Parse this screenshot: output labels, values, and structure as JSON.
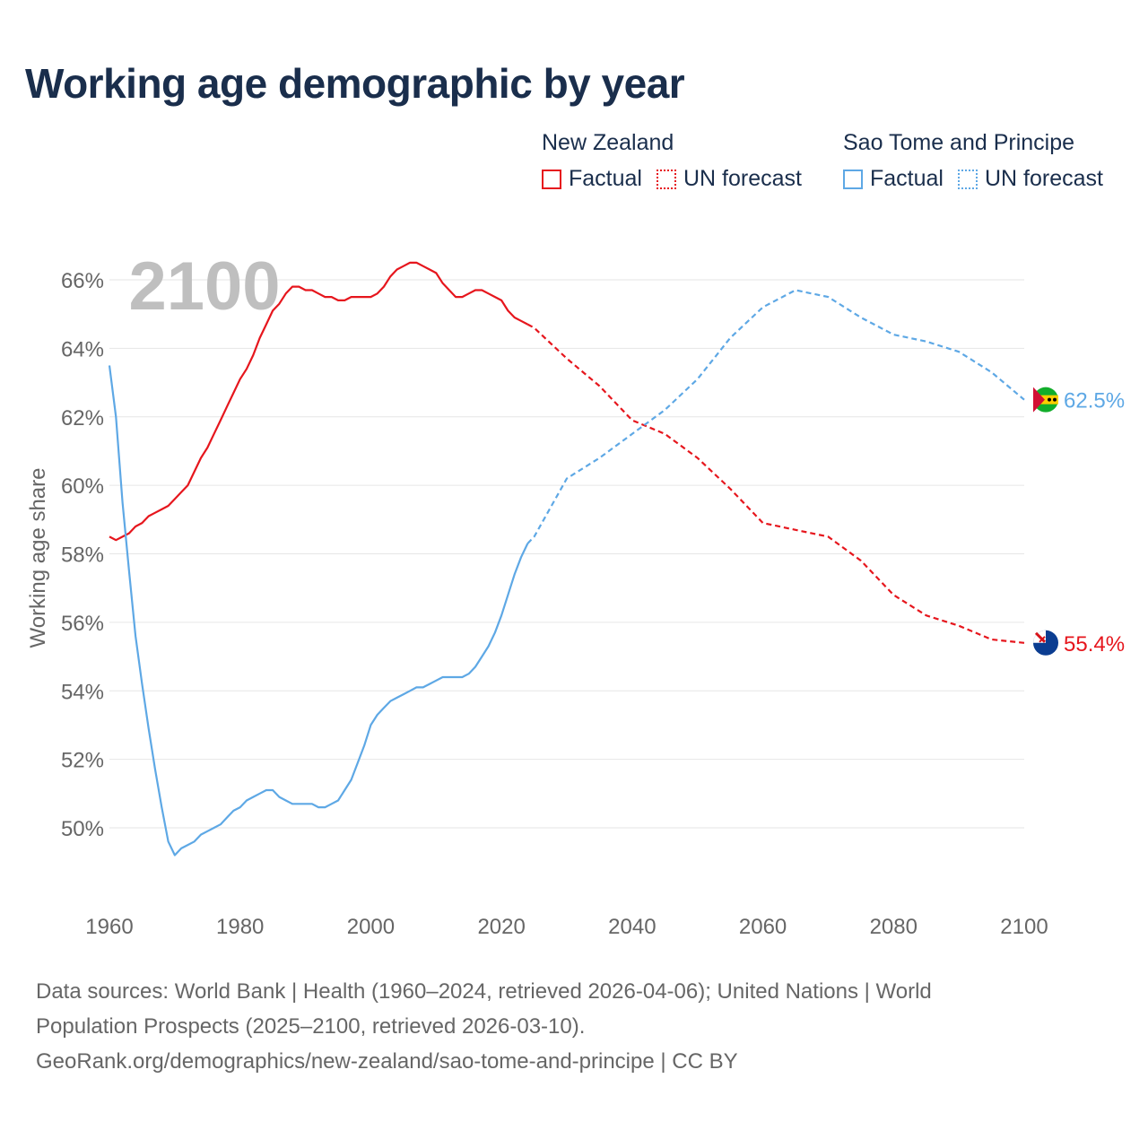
{
  "title": "Working age demographic by year",
  "legend": {
    "groups": [
      {
        "name": "New Zealand",
        "factual_label": "Factual",
        "forecast_label": "UN forecast",
        "color": "#e6161d"
      },
      {
        "name": "Sao Tome and Principe",
        "factual_label": "Factual",
        "forecast_label": "UN forecast",
        "color": "#5ea8e5"
      }
    ]
  },
  "chart_data": {
    "type": "line",
    "title": "Working age demographic by year",
    "xlabel": "",
    "ylabel": "Working age share",
    "xlim": [
      1960,
      2100
    ],
    "ylim": [
      48,
      67
    ],
    "x_ticks": [
      1960,
      1980,
      2000,
      2020,
      2040,
      2060,
      2080,
      2100
    ],
    "x_tick_labels": [
      "1960",
      "1980",
      "2000",
      "2020",
      "2040",
      "2060",
      "2080",
      "2100"
    ],
    "y_ticks": [
      50,
      52,
      54,
      56,
      58,
      60,
      62,
      64,
      66
    ],
    "y_tick_labels": [
      "50%",
      "52%",
      "54%",
      "56%",
      "58%",
      "60%",
      "62%",
      "64%",
      "66%"
    ],
    "year_watermark": "2100",
    "factual_end_year": 2024,
    "series": [
      {
        "name": "New Zealand",
        "color": "#e6161d",
        "end_label": "55.4%",
        "points": [
          [
            1960,
            58.5
          ],
          [
            1961,
            58.4
          ],
          [
            1962,
            58.5
          ],
          [
            1963,
            58.6
          ],
          [
            1964,
            58.8
          ],
          [
            1965,
            58.9
          ],
          [
            1966,
            59.1
          ],
          [
            1967,
            59.2
          ],
          [
            1968,
            59.3
          ],
          [
            1969,
            59.4
          ],
          [
            1970,
            59.6
          ],
          [
            1971,
            59.8
          ],
          [
            1972,
            60.0
          ],
          [
            1973,
            60.4
          ],
          [
            1974,
            60.8
          ],
          [
            1975,
            61.1
          ],
          [
            1976,
            61.5
          ],
          [
            1977,
            61.9
          ],
          [
            1978,
            62.3
          ],
          [
            1979,
            62.7
          ],
          [
            1980,
            63.1
          ],
          [
            1981,
            63.4
          ],
          [
            1982,
            63.8
          ],
          [
            1983,
            64.3
          ],
          [
            1984,
            64.7
          ],
          [
            1985,
            65.1
          ],
          [
            1986,
            65.3
          ],
          [
            1987,
            65.6
          ],
          [
            1988,
            65.8
          ],
          [
            1989,
            65.8
          ],
          [
            1990,
            65.7
          ],
          [
            1991,
            65.7
          ],
          [
            1992,
            65.6
          ],
          [
            1993,
            65.5
          ],
          [
            1994,
            65.5
          ],
          [
            1995,
            65.4
          ],
          [
            1996,
            65.4
          ],
          [
            1997,
            65.5
          ],
          [
            1998,
            65.5
          ],
          [
            1999,
            65.5
          ],
          [
            2000,
            65.5
          ],
          [
            2001,
            65.6
          ],
          [
            2002,
            65.8
          ],
          [
            2003,
            66.1
          ],
          [
            2004,
            66.3
          ],
          [
            2005,
            66.4
          ],
          [
            2006,
            66.5
          ],
          [
            2007,
            66.5
          ],
          [
            2008,
            66.4
          ],
          [
            2009,
            66.3
          ],
          [
            2010,
            66.2
          ],
          [
            2011,
            65.9
          ],
          [
            2012,
            65.7
          ],
          [
            2013,
            65.5
          ],
          [
            2014,
            65.5
          ],
          [
            2015,
            65.6
          ],
          [
            2016,
            65.7
          ],
          [
            2017,
            65.7
          ],
          [
            2018,
            65.6
          ],
          [
            2019,
            65.5
          ],
          [
            2020,
            65.4
          ],
          [
            2021,
            65.1
          ],
          [
            2022,
            64.9
          ],
          [
            2023,
            64.8
          ],
          [
            2024,
            64.7
          ],
          [
            2025,
            64.6
          ],
          [
            2030,
            63.7
          ],
          [
            2035,
            62.9
          ],
          [
            2040,
            61.9
          ],
          [
            2045,
            61.5
          ],
          [
            2050,
            60.8
          ],
          [
            2055,
            59.9
          ],
          [
            2060,
            58.9
          ],
          [
            2065,
            58.7
          ],
          [
            2070,
            58.5
          ],
          [
            2075,
            57.8
          ],
          [
            2080,
            56.8
          ],
          [
            2085,
            56.2
          ],
          [
            2090,
            55.9
          ],
          [
            2095,
            55.5
          ],
          [
            2100,
            55.4
          ]
        ]
      },
      {
        "name": "Sao Tome and Principe",
        "color": "#5ea8e5",
        "end_label": "62.5%",
        "points": [
          [
            1960,
            63.5
          ],
          [
            1961,
            62.0
          ],
          [
            1962,
            59.5
          ],
          [
            1963,
            57.5
          ],
          [
            1964,
            55.6
          ],
          [
            1965,
            54.2
          ],
          [
            1966,
            52.9
          ],
          [
            1967,
            51.7
          ],
          [
            1968,
            50.6
          ],
          [
            1969,
            49.6
          ],
          [
            1970,
            49.2
          ],
          [
            1971,
            49.4
          ],
          [
            1972,
            49.5
          ],
          [
            1973,
            49.6
          ],
          [
            1974,
            49.8
          ],
          [
            1975,
            49.9
          ],
          [
            1976,
            50.0
          ],
          [
            1977,
            50.1
          ],
          [
            1978,
            50.3
          ],
          [
            1979,
            50.5
          ],
          [
            1980,
            50.6
          ],
          [
            1981,
            50.8
          ],
          [
            1982,
            50.9
          ],
          [
            1983,
            51.0
          ],
          [
            1984,
            51.1
          ],
          [
            1985,
            51.1
          ],
          [
            1986,
            50.9
          ],
          [
            1987,
            50.8
          ],
          [
            1988,
            50.7
          ],
          [
            1989,
            50.7
          ],
          [
            1990,
            50.7
          ],
          [
            1991,
            50.7
          ],
          [
            1992,
            50.6
          ],
          [
            1993,
            50.6
          ],
          [
            1994,
            50.7
          ],
          [
            1995,
            50.8
          ],
          [
            1996,
            51.1
          ],
          [
            1997,
            51.4
          ],
          [
            1998,
            51.9
          ],
          [
            1999,
            52.4
          ],
          [
            2000,
            53.0
          ],
          [
            2001,
            53.3
          ],
          [
            2002,
            53.5
          ],
          [
            2003,
            53.7
          ],
          [
            2004,
            53.8
          ],
          [
            2005,
            53.9
          ],
          [
            2006,
            54.0
          ],
          [
            2007,
            54.1
          ],
          [
            2008,
            54.1
          ],
          [
            2009,
            54.2
          ],
          [
            2010,
            54.3
          ],
          [
            2011,
            54.4
          ],
          [
            2012,
            54.4
          ],
          [
            2013,
            54.4
          ],
          [
            2014,
            54.4
          ],
          [
            2015,
            54.5
          ],
          [
            2016,
            54.7
          ],
          [
            2017,
            55.0
          ],
          [
            2018,
            55.3
          ],
          [
            2019,
            55.7
          ],
          [
            2020,
            56.2
          ],
          [
            2021,
            56.8
          ],
          [
            2022,
            57.4
          ],
          [
            2023,
            57.9
          ],
          [
            2024,
            58.3
          ],
          [
            2025,
            58.5
          ],
          [
            2030,
            60.2
          ],
          [
            2035,
            60.8
          ],
          [
            2040,
            61.5
          ],
          [
            2045,
            62.2
          ],
          [
            2050,
            63.1
          ],
          [
            2055,
            64.3
          ],
          [
            2060,
            65.2
          ],
          [
            2065,
            65.7
          ],
          [
            2070,
            65.5
          ],
          [
            2075,
            64.9
          ],
          [
            2080,
            64.4
          ],
          [
            2085,
            64.2
          ],
          [
            2090,
            63.9
          ],
          [
            2095,
            63.3
          ],
          [
            2100,
            62.5
          ]
        ]
      }
    ]
  },
  "footer": {
    "line1": "Data sources: World Bank | Health (1960–2024, retrieved 2026-04-06); United Nations | World",
    "line2": "Population Prospects (2025–2100, retrieved 2026-03-10).",
    "line3": "GeoRank.org/demographics/new-zealand/sao-tome-and-principe | CC BY"
  }
}
